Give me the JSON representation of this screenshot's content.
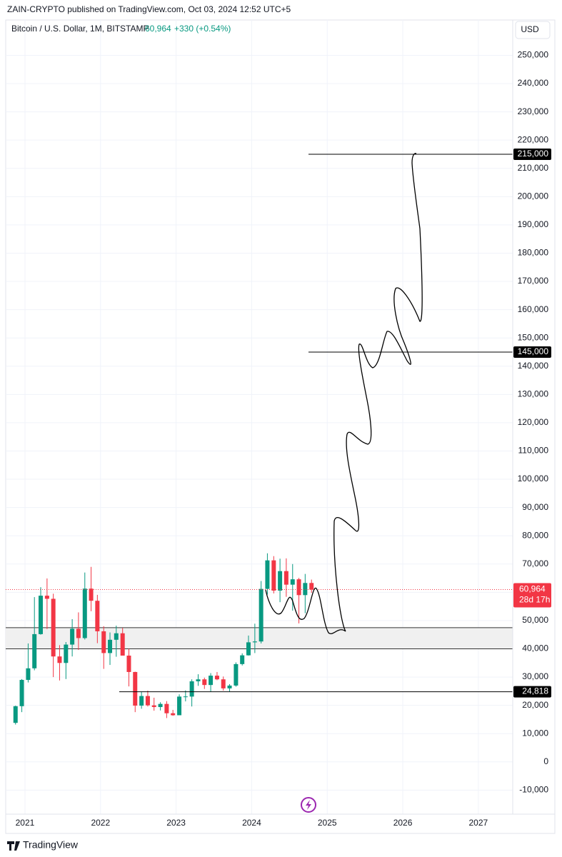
{
  "header": {
    "published": "ZAIN-CRYPTO published on TradingView.com, Oct 03, 2024 12:52 UTC+5"
  },
  "footer": {
    "brand": "TradingView"
  },
  "chart_data": {
    "type": "candlestick",
    "title": "Bitcoin / U.S. Dollar, 1M, BITSTAMP",
    "last_price": {
      "value": 60964,
      "label": "60,964"
    },
    "change": "+330 (+0.54%)",
    "countdown": "28d 17h",
    "currency": "USD",
    "up_color": "#089981",
    "down_color": "#f23645",
    "x": [
      2020.875,
      2020.958,
      2021.042,
      2021.125,
      2021.208,
      2021.292,
      2021.375,
      2021.458,
      2021.542,
      2021.625,
      2021.708,
      2021.792,
      2021.875,
      2021.958,
      2022.042,
      2022.125,
      2022.208,
      2022.292,
      2022.375,
      2022.458,
      2022.542,
      2022.625,
      2022.708,
      2022.792,
      2022.875,
      2022.958,
      2023.042,
      2023.125,
      2023.208,
      2023.292,
      2023.375,
      2023.458,
      2023.542,
      2023.625,
      2023.708,
      2023.792,
      2023.875,
      2023.958,
      2024.042,
      2024.125,
      2024.208,
      2024.292,
      2024.375,
      2024.458,
      2024.542,
      2024.625,
      2024.708,
      2024.792
    ],
    "open": [
      13800,
      19700,
      29000,
      33100,
      45200,
      58800,
      57700,
      37300,
      35000,
      41500,
      47100,
      43800,
      61300,
      57000,
      46200,
      38500,
      43200,
      45500,
      37600,
      31800,
      19900,
      23300,
      20000,
      19400,
      20500,
      17200,
      16500,
      23100,
      23100,
      28500,
      29200,
      27200,
      30500,
      29200,
      26000,
      27000,
      34600,
      37700,
      42300,
      42600,
      61200,
      71300,
      60600,
      67500,
      62700,
      64600,
      59000,
      63300
    ],
    "high": [
      19900,
      29300,
      41900,
      58300,
      61800,
      64900,
      59500,
      41300,
      42400,
      50500,
      52900,
      67000,
      69000,
      59100,
      48000,
      45800,
      48200,
      47400,
      40000,
      31900,
      24700,
      25200,
      22700,
      21100,
      21500,
      18400,
      23900,
      25300,
      29200,
      31000,
      29800,
      31400,
      31800,
      30200,
      27500,
      35200,
      38400,
      44700,
      48900,
      64000,
      73800,
      72800,
      71900,
      72000,
      70000,
      65100,
      66500,
      64500
    ],
    "low": [
      13200,
      17600,
      28100,
      32400,
      45000,
      47000,
      30000,
      28800,
      29300,
      37300,
      39600,
      43300,
      53300,
      42000,
      32900,
      34300,
      37200,
      37700,
      26700,
      17600,
      18800,
      19600,
      18100,
      18200,
      15500,
      16300,
      16500,
      21400,
      19600,
      26900,
      25800,
      24800,
      28900,
      25200,
      24900,
      26600,
      34100,
      37600,
      38500,
      41900,
      59200,
      59600,
      56500,
      58400,
      53500,
      49000,
      52600,
      59800
    ],
    "close": [
      19700,
      29000,
      33100,
      45200,
      58800,
      57700,
      37300,
      35000,
      41500,
      47100,
      43800,
      61300,
      57000,
      46200,
      38500,
      43200,
      45500,
      37600,
      31800,
      19900,
      23300,
      20000,
      19400,
      20500,
      17200,
      16500,
      23100,
      23150,
      28500,
      29200,
      27200,
      30500,
      29200,
      26000,
      27000,
      34600,
      37700,
      42300,
      42600,
      61200,
      71300,
      60600,
      67500,
      62700,
      64600,
      59000,
      63300,
      60964
    ],
    "xlim": [
      2020.745,
      2027.455
    ],
    "xticks": [
      2021,
      2022,
      2023,
      2024,
      2025,
      2026,
      2027
    ],
    "ylim": [
      -18500,
      262500
    ],
    "yticks": [
      {
        "value": -10000,
        "label": "-10,000"
      },
      0,
      {
        "value": 10000,
        "label": "10,000"
      },
      {
        "value": 20000,
        "label": "20,000"
      },
      {
        "value": 30000,
        "label": "30,000"
      },
      {
        "value": 40000,
        "label": "40,000"
      },
      {
        "value": 50000,
        "label": "50,000"
      },
      {
        "value": 60000,
        "label": "60,000"
      },
      {
        "value": 70000,
        "label": "70,000"
      },
      {
        "value": 80000,
        "label": "80,000"
      },
      {
        "value": 90000,
        "label": "90,000"
      },
      {
        "value": 100000,
        "label": "100,000"
      },
      {
        "value": 110000,
        "label": "110,000"
      },
      {
        "value": 120000,
        "label": "120,000"
      },
      {
        "value": 130000,
        "label": "130,000"
      },
      {
        "value": 140000,
        "label": "140,000"
      },
      {
        "value": 150000,
        "label": "150,000"
      },
      {
        "value": 160000,
        "label": "160,000"
      },
      {
        "value": 170000,
        "label": "170,000"
      },
      {
        "value": 180000,
        "label": "180,000"
      },
      {
        "value": 190000,
        "label": "190,000"
      },
      {
        "value": 200000,
        "label": "200,000"
      },
      {
        "value": 210000,
        "label": "210,000"
      },
      {
        "value": 220000,
        "label": "220,000"
      },
      {
        "value": 230000,
        "label": "230,000"
      },
      {
        "value": 240000,
        "label": "240,000"
      },
      {
        "value": 250000,
        "label": "250,000"
      }
    ],
    "grid": true,
    "levels": [
      {
        "value": 215000,
        "label": "215,000"
      },
      {
        "value": 145000,
        "label": "145,000"
      },
      {
        "value": 24818,
        "label": "24,818"
      }
    ],
    "zone": [
      40000,
      47500
    ]
  }
}
